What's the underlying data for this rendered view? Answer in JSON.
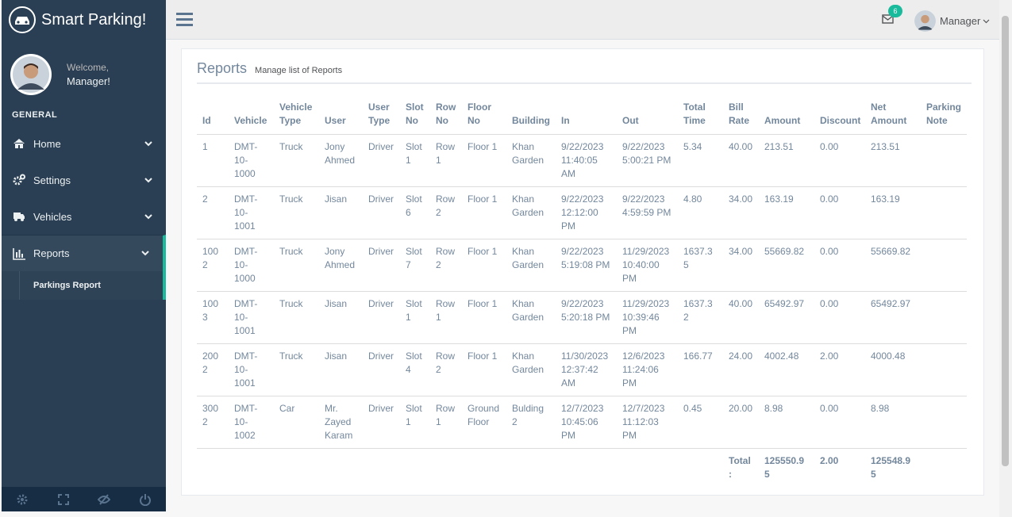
{
  "sidebar": {
    "brand": "Smart Parking!",
    "welcome": "Welcome,",
    "user": "Manager!",
    "section": "GENERAL",
    "menu": [
      "Home",
      "Settings",
      "Vehicles",
      "Reports"
    ],
    "submenu": [
      "Parkings Report"
    ]
  },
  "topbar": {
    "notifications": 6,
    "user": "Manager"
  },
  "page": {
    "title": "Reports",
    "subtitle": "Manage list of Reports"
  },
  "table": {
    "headers": [
      "Id",
      "Vehicle",
      "Vehicle Type",
      "User",
      "User Type",
      "Slot No",
      "Row No",
      "Floor No",
      "Building",
      "In",
      "Out",
      "Total Time",
      "Bill Rate",
      "Amount",
      "Discount",
      "Net Amount",
      "Parking Note"
    ],
    "rows": [
      [
        "1",
        "DMT-10-1000",
        "Truck",
        "Jony Ahmed",
        "Driver",
        "Slot 1",
        "Row 1",
        "Floor 1",
        "Khan Garden",
        "9/22/2023 11:40:05 AM",
        "9/22/2023 5:00:21 PM",
        "5.34",
        "40.00",
        "213.51",
        "0.00",
        "213.51"
      ],
      [
        "2",
        "DMT-10-1001",
        "Truck",
        "Jisan",
        "Driver",
        "Slot 6",
        "Row 2",
        "Floor 1",
        "Khan Garden",
        "9/22/2023 12:12:00 PM",
        "9/22/2023 4:59:59 PM",
        "4.80",
        "34.00",
        "163.19",
        "0.00",
        "163.19"
      ],
      [
        "1002",
        "DMT-10-1000",
        "Truck",
        "Jony Ahmed",
        "Driver",
        "Slot 7",
        "Row 2",
        "Floor 1",
        "Khan Garden",
        "9/22/2023 5:19:08 PM",
        "11/29/2023 10:40:00 PM",
        "1637.35",
        "34.00",
        "55669.82",
        "0.00",
        "55669.82"
      ],
      [
        "1003",
        "DMT-10-1001",
        "Truck",
        "Jisan",
        "Driver",
        "Slot 1",
        "Row 1",
        "Floor 1",
        "Khan Garden",
        "9/22/2023 5:20:18 PM",
        "11/29/2023 10:39:46 PM",
        "1637.32",
        "40.00",
        "65492.97",
        "0.00",
        "65492.97"
      ],
      [
        "2002",
        "DMT-10-1001",
        "Truck",
        "Jisan",
        "Driver",
        "Slot 4",
        "Row 2",
        "Floor 1",
        "Khan Garden",
        "11/30/2023 12:37:42 AM",
        "12/6/2023 11:24:06 PM",
        "166.77",
        "24.00",
        "4002.48",
        "2.00",
        "4000.48"
      ],
      [
        "3002",
        "DMT-10-1002",
        "Car",
        "Mr. Zayed Karam",
        "Driver",
        "Slot 1",
        "Row 1",
        "Ground Floor",
        "Bulding 2",
        "12/7/2023 10:45:06 PM",
        "12/7/2023 11:12:03 PM",
        "0.45",
        "20.00",
        "8.98",
        "0.00",
        "8.98"
      ]
    ],
    "total": {
      "label": "Total:",
      "amount": "125550.95",
      "discount": "2.00",
      "net": "125548.95"
    }
  }
}
